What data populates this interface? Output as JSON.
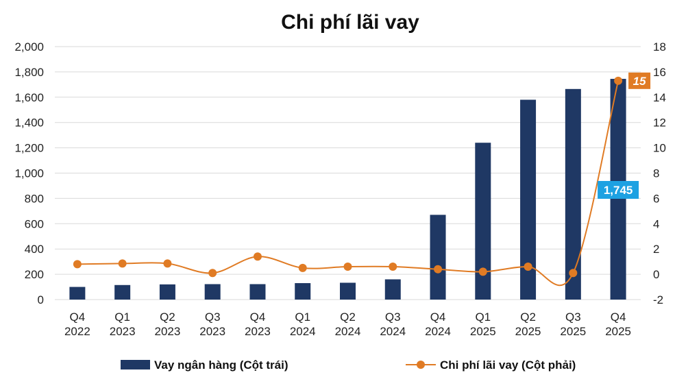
{
  "chart_data": {
    "type": "bar+line",
    "title": "Chi phí lãi vay",
    "categories": [
      [
        "Q4",
        "2022"
      ],
      [
        "Q1",
        "2023"
      ],
      [
        "Q2",
        "2023"
      ],
      [
        "Q3",
        "2023"
      ],
      [
        "Q4",
        "2023"
      ],
      [
        "Q1",
        "2024"
      ],
      [
        "Q2",
        "2024"
      ],
      [
        "Q3",
        "2024"
      ],
      [
        "Q4",
        "2024"
      ],
      [
        "Q1",
        "2025"
      ],
      [
        "Q2",
        "2025"
      ],
      [
        "Q3",
        "2025"
      ],
      [
        "Q4",
        "2025"
      ]
    ],
    "series": [
      {
        "name": "Vay ngân hàng (Cột trái)",
        "type": "bar",
        "axis": "left",
        "color": "#1f3864",
        "values": [
          100,
          115,
          120,
          122,
          122,
          130,
          133,
          160,
          670,
          1240,
          1580,
          1665,
          1745
        ]
      },
      {
        "name": "Chi phí lãi vay (Cột phải)",
        "type": "line",
        "axis": "right",
        "color": "#e07b24",
        "values": [
          0.8,
          0.85,
          0.85,
          0.1,
          1.4,
          0.5,
          0.6,
          0.6,
          0.4,
          0.2,
          0.6,
          0.1,
          15.3
        ]
      }
    ],
    "y_left": {
      "min": 0,
      "max": 2000,
      "step": 200,
      "ticks": [
        "0",
        "200",
        "400",
        "600",
        "800",
        "1,000",
        "1,200",
        "1,400",
        "1,600",
        "1,800",
        "2,000"
      ]
    },
    "y_right": {
      "min": -2,
      "max": 18,
      "step": 2,
      "ticks": [
        "-2",
        "0",
        "2",
        "4",
        "6",
        "8",
        "10",
        "12",
        "14",
        "16",
        "18"
      ]
    },
    "grid": true,
    "legend": "bottom",
    "annotations": [
      {
        "label": "1,745",
        "series": 0,
        "index": 12,
        "color": "#1da1e2"
      },
      {
        "label": "15",
        "series": 1,
        "index": 12,
        "color": "#e07b24"
      }
    ]
  }
}
